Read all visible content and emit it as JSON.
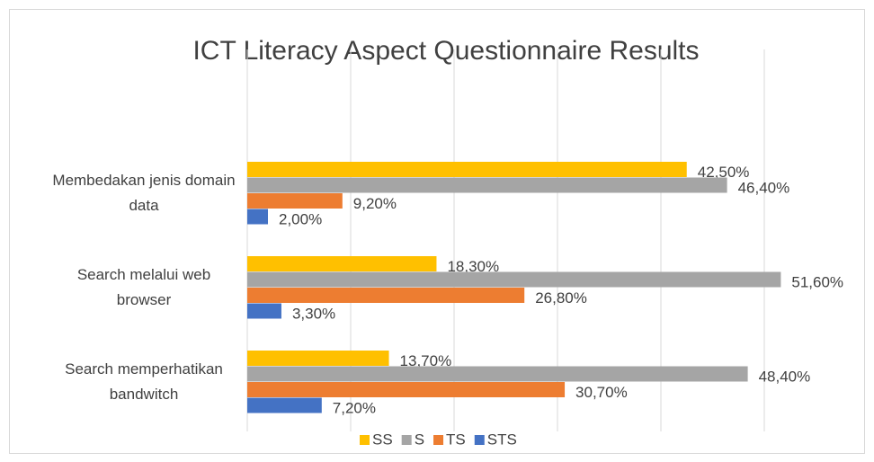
{
  "chart_data": {
    "type": "bar",
    "orientation": "horizontal",
    "title": "ICT Literacy Aspect Questionnaire Results",
    "categories": [
      "Membedakan jenis domain data",
      "Search melalui web browser",
      "Search memperhatikan bandwitch"
    ],
    "series": [
      {
        "name": "SS",
        "color": "#ffc000",
        "values": [
          42.5,
          18.3,
          13.7
        ],
        "value_labels": [
          "42,50%",
          "18,30%",
          "13,70%"
        ]
      },
      {
        "name": "S",
        "color": "#a5a5a5",
        "values": [
          46.4,
          51.6,
          48.4
        ],
        "value_labels": [
          "46,40%",
          "51,60%",
          "48,40%"
        ]
      },
      {
        "name": "TS",
        "color": "#ed7d31",
        "values": [
          9.2,
          26.8,
          30.7
        ],
        "value_labels": [
          "9,20%",
          "26,80%",
          "30,70%"
        ]
      },
      {
        "name": "STS",
        "color": "#4472c4",
        "values": [
          2.0,
          3.3,
          7.2
        ],
        "value_labels": [
          "2,00%",
          "3,30%",
          "7,20%"
        ]
      }
    ],
    "xlim": [
      0,
      60
    ],
    "xticks": [
      0,
      10,
      20,
      30,
      40,
      50
    ],
    "grid": true,
    "legend": "bottom"
  }
}
